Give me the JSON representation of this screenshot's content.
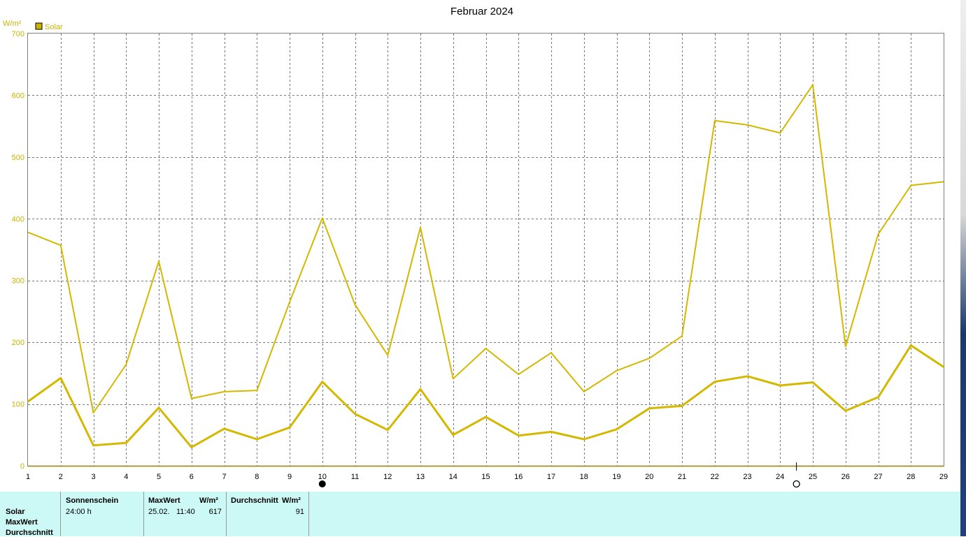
{
  "chart_data": {
    "type": "line",
    "title": "Februar 2024",
    "ylabel": "W/m²",
    "ylim": [
      0,
      700
    ],
    "yticks": [
      0,
      100,
      200,
      300,
      400,
      500,
      600,
      700
    ],
    "grid": true,
    "legend": {
      "position": "top-left",
      "entries": [
        "Solar"
      ]
    },
    "categories": [
      "1",
      "2",
      "3",
      "4",
      "5",
      "6",
      "7",
      "8",
      "9",
      "10",
      "11",
      "12",
      "13",
      "14",
      "15",
      "16",
      "17",
      "18",
      "19",
      "20",
      "21",
      "22",
      "23",
      "24",
      "25",
      "26",
      "27",
      "28",
      "29"
    ],
    "series": [
      {
        "name": "Solar",
        "values": [
          378,
          357,
          86,
          164,
          331,
          109,
          120,
          122,
          265,
          401,
          261,
          179,
          386,
          141,
          190,
          148,
          183,
          120,
          154,
          174,
          210,
          559,
          552,
          539,
          617,
          193,
          375,
          454,
          460
        ]
      },
      {
        "values": [
          104,
          142,
          33,
          37,
          94,
          30,
          60,
          43,
          62,
          136,
          84,
          58,
          124,
          50,
          79,
          49,
          55,
          43,
          59,
          93,
          97,
          136,
          145,
          130,
          135,
          89,
          111,
          195,
          160
        ]
      }
    ],
    "color": "#d4b800",
    "moon_phases": [
      {
        "day": 10,
        "phase": "new"
      },
      {
        "day": 24.5,
        "phase": "full"
      }
    ]
  },
  "table": {
    "row_labels": [
      "Solar",
      "MaxWert",
      "Durchschnitt"
    ],
    "col1": {
      "header": "Sonnenschein",
      "value": "24:00 h"
    },
    "col2": {
      "header": "MaxWert",
      "unit": "W/m²",
      "date": "25.02.",
      "time": "11:40",
      "value": "617"
    },
    "col3": {
      "header": "Durchschnitt",
      "unit": "W/m²",
      "value": "91"
    }
  }
}
